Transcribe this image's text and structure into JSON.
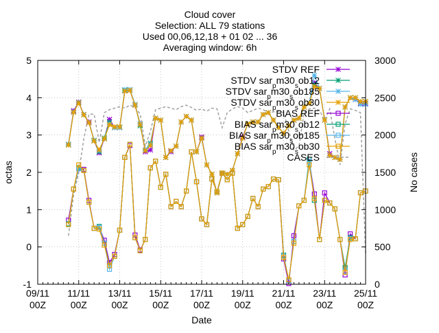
{
  "chart_data": {
    "type": "line",
    "title_lines": [
      "Cloud cover",
      "Selection: ALL     79 stations",
      "Used 00,06,12,18 + 01 02 ... 36",
      "Averaging window:  6h"
    ],
    "xlabel": "Date",
    "ylabel": "octas",
    "y2label": "No cases",
    "xlim": [
      0,
      16
    ],
    "ylim": [
      -1,
      5
    ],
    "y2lim": [
      0,
      3000
    ],
    "grid": true,
    "legend_position": "top-right",
    "x_ticks": [
      {
        "x": 0,
        "line1": "09/11",
        "line2": "00Z"
      },
      {
        "x": 2,
        "line1": "11/11",
        "line2": "00Z"
      },
      {
        "x": 4,
        "line1": "13/11",
        "line2": "00Z"
      },
      {
        "x": 6,
        "line1": "15/11",
        "line2": "00Z"
      },
      {
        "x": 8,
        "line1": "17/11",
        "line2": "00Z"
      },
      {
        "x": 10,
        "line1": "19/11",
        "line2": "00Z"
      },
      {
        "x": 12,
        "line1": "21/11",
        "line2": "00Z"
      },
      {
        "x": 14,
        "line1": "23/11",
        "line2": "00Z"
      },
      {
        "x": 16,
        "line1": "25/11",
        "line2": "00Z"
      }
    ],
    "y_ticks": [
      "-1",
      "0",
      "1",
      "2",
      "3",
      "4",
      "5"
    ],
    "y2_ticks": [
      "0",
      "500",
      "1000",
      "1500",
      "2000",
      "2500",
      "3000"
    ],
    "x": [
      1.5,
      1.75,
      2.0,
      2.25,
      2.5,
      2.75,
      3.0,
      3.25,
      3.5,
      3.75,
      4.0,
      4.25,
      4.5,
      4.75,
      5.0,
      5.25,
      5.5,
      5.75,
      6.0,
      6.25,
      6.5,
      6.75,
      7.0,
      7.25,
      7.5,
      7.75,
      8.0,
      8.25,
      8.5,
      8.75,
      9.0,
      9.25,
      9.5,
      9.75,
      10.0,
      10.25,
      10.5,
      10.75,
      11.0,
      11.25,
      11.5,
      11.75,
      12.0,
      12.25,
      12.5,
      12.75,
      13.0,
      13.25,
      13.5,
      13.75,
      14.0,
      14.25,
      14.5,
      14.75,
      15.0,
      15.25,
      15.5,
      15.75,
      16.0
    ],
    "series": [
      {
        "name": "STDV REF",
        "axis": "y1",
        "color": "#9400d3",
        "marker": "star",
        "dashed": false,
        "values": [
          2.75,
          3.65,
          3.88,
          3.55,
          3.35,
          2.85,
          2.52,
          2.9,
          3.42,
          3.2,
          3.2,
          4.18,
          4.2,
          3.8,
          3.3,
          2.55,
          2.6,
          3.45,
          3.4,
          2.4,
          2.55,
          2.7,
          3.35,
          3.5,
          3.4,
          2.55,
          2.95,
          2.2,
          1.95,
          1.45,
          1.97,
          1.95,
          2.05,
          2.5,
          2.95,
          3.3,
          3.35,
          3.35,
          3.55,
          3.6,
          3.4,
          3.2,
          3.05,
          3.25,
          3.4,
          3.45,
          3.75,
          3.85,
          4.4,
          4.25,
          3.4,
          2.5,
          2.4,
          2.35,
          3.75,
          4.0,
          3.95,
          3.85,
          3.85
        ]
      },
      {
        "name": "STDV sar_pm30_sob12",
        "axis": "y1",
        "color": "#009e73",
        "marker": "star",
        "dashed": false,
        "values": [
          2.75,
          3.62,
          3.87,
          3.54,
          3.33,
          2.86,
          2.55,
          2.92,
          3.35,
          3.2,
          3.2,
          4.2,
          4.21,
          3.82,
          3.25,
          2.6,
          2.78,
          3.45,
          3.4,
          2.4,
          2.58,
          2.7,
          3.35,
          3.5,
          3.4,
          2.55,
          2.92,
          2.2,
          1.95,
          1.45,
          1.98,
          1.95,
          2.05,
          2.5,
          2.92,
          3.3,
          3.35,
          3.35,
          3.55,
          3.6,
          3.4,
          3.2,
          3.05,
          3.25,
          3.4,
          3.45,
          3.75,
          3.85,
          4.35,
          4.25,
          3.4,
          2.45,
          2.4,
          2.35,
          3.75,
          4.0,
          4.0,
          3.9,
          3.9
        ]
      },
      {
        "name": "STDV sar_pm30_sob185",
        "axis": "y1",
        "color": "#56b4e9",
        "marker": "star",
        "dashed": false,
        "values": [
          2.74,
          3.62,
          3.86,
          3.55,
          3.33,
          2.85,
          2.58,
          2.9,
          3.3,
          3.2,
          3.2,
          4.22,
          4.22,
          3.82,
          3.3,
          2.6,
          2.75,
          3.45,
          3.4,
          2.4,
          2.58,
          2.7,
          3.35,
          3.5,
          3.4,
          2.55,
          2.92,
          2.2,
          1.95,
          1.45,
          1.98,
          1.95,
          2.05,
          2.5,
          2.92,
          3.3,
          3.35,
          3.35,
          3.55,
          3.6,
          3.4,
          3.2,
          3.05,
          3.25,
          3.4,
          3.45,
          3.75,
          3.85,
          4.6,
          4.25,
          3.4,
          2.45,
          2.4,
          2.35,
          3.75,
          4.0,
          3.95,
          3.82,
          3.82
        ]
      },
      {
        "name": "STDV sar_pm30_sob30",
        "axis": "y1",
        "color": "#e69f00",
        "marker": "star",
        "dashed": false,
        "values": [
          2.73,
          3.61,
          3.86,
          3.54,
          3.33,
          2.84,
          2.6,
          2.9,
          3.28,
          3.22,
          3.22,
          4.18,
          4.2,
          3.8,
          3.28,
          2.58,
          2.72,
          3.45,
          3.4,
          2.4,
          2.58,
          2.7,
          3.35,
          3.5,
          3.4,
          2.55,
          2.92,
          2.2,
          1.95,
          1.45,
          1.98,
          1.95,
          2.05,
          2.5,
          2.92,
          3.3,
          3.35,
          3.35,
          3.55,
          3.6,
          3.4,
          3.2,
          3.05,
          3.25,
          3.4,
          3.45,
          3.75,
          3.85,
          4.3,
          4.25,
          3.4,
          2.45,
          2.4,
          2.35,
          3.75,
          4.0,
          4.0,
          3.9,
          3.9
        ]
      },
      {
        "name": "BIAS REF",
        "axis": "y1",
        "color": "#9400d3",
        "marker": "square",
        "dashed": false,
        "values": [
          0.72,
          1.55,
          2.1,
          2.08,
          1.25,
          0.5,
          0.52,
          0.18,
          -0.42,
          -0.2,
          0.45,
          2.4,
          2.72,
          0.32,
          -0.08,
          0.2,
          2.12,
          2.3,
          1.6,
          1.95,
          1.08,
          1.22,
          1.08,
          1.5,
          2.55,
          1.75,
          0.75,
          0.6,
          1.82,
          1.48,
          1.98,
          1.8,
          1.98,
          0.5,
          0.6,
          0.82,
          1.3,
          1.08,
          1.55,
          1.62,
          1.82,
          1.8,
          -0.32,
          -0.98,
          0.3,
          1.1,
          1.25,
          2.3,
          1.42,
          0.2,
          1.45,
          1.18,
          1.02,
          0.2,
          -0.75,
          0.35,
          0.22,
          1.45,
          1.5
        ]
      },
      {
        "name": "BIAS sar_pm30_sob12",
        "axis": "y1",
        "color": "#009e73",
        "marker": "square",
        "dashed": false,
        "values": [
          0.62,
          1.55,
          2.12,
          2.05,
          1.2,
          0.5,
          0.55,
          0.1,
          -0.5,
          -0.25,
          0.45,
          2.4,
          2.75,
          0.25,
          -0.1,
          0.2,
          2.12,
          2.3,
          1.6,
          1.95,
          1.08,
          1.22,
          1.08,
          1.5,
          2.55,
          1.75,
          0.75,
          0.6,
          1.82,
          1.48,
          1.98,
          1.8,
          1.98,
          0.5,
          0.6,
          0.82,
          1.3,
          1.08,
          1.55,
          1.62,
          1.82,
          1.8,
          -0.22,
          -0.9,
          0.15,
          1.1,
          1.25,
          2.35,
          1.25,
          0.2,
          1.25,
          1.18,
          1.02,
          0.2,
          -0.55,
          0.25,
          0.22,
          1.45,
          1.5
        ]
      },
      {
        "name": "BIAS sar_pm30_sob185",
        "axis": "y1",
        "color": "#56b4e9",
        "marker": "square",
        "dashed": false,
        "values": [
          0.6,
          1.55,
          2.1,
          2.05,
          1.2,
          0.5,
          0.52,
          0.1,
          -0.6,
          -0.25,
          0.45,
          2.4,
          2.75,
          0.25,
          -0.1,
          0.2,
          2.12,
          2.3,
          1.6,
          1.95,
          1.08,
          1.22,
          1.08,
          1.5,
          2.55,
          1.75,
          0.75,
          0.6,
          1.82,
          1.48,
          1.98,
          1.8,
          1.98,
          0.5,
          0.6,
          0.82,
          1.3,
          1.08,
          1.55,
          1.62,
          1.82,
          1.8,
          -0.25,
          -0.9,
          0.15,
          1.1,
          1.25,
          2.3,
          1.3,
          0.2,
          1.25,
          1.18,
          1.02,
          0.2,
          -0.65,
          0.22,
          0.22,
          1.45,
          1.5
        ]
      },
      {
        "name": "BIAS sar_pm30_sob30",
        "axis": "y1",
        "color": "#e69f00",
        "marker": "square",
        "dashed": false,
        "values": [
          0.6,
          1.55,
          2.2,
          2.05,
          1.2,
          0.5,
          0.48,
          0.05,
          -0.5,
          -0.25,
          0.45,
          2.4,
          2.75,
          0.25,
          -0.1,
          0.2,
          2.12,
          2.3,
          1.6,
          1.95,
          1.08,
          1.22,
          1.08,
          1.5,
          2.55,
          1.75,
          0.75,
          0.6,
          1.82,
          1.48,
          1.98,
          1.8,
          1.98,
          0.5,
          0.6,
          0.82,
          1.3,
          1.08,
          1.55,
          1.62,
          1.82,
          1.8,
          -0.28,
          -0.88,
          0.1,
          1.1,
          1.25,
          2.2,
          1.3,
          0.2,
          1.25,
          1.18,
          1.02,
          0.2,
          -0.68,
          0.2,
          0.22,
          1.45,
          1.5
        ]
      },
      {
        "name": "CASES",
        "axis": "y2",
        "color": "#a0a0a0",
        "marker": "none",
        "dashed": true,
        "values": [
          650,
          1200,
          1500,
          1950,
          2280,
          2280,
          1900,
          2300,
          2340,
          2360,
          2380,
          2360,
          2400,
          2370,
          2280,
          1850,
          2050,
          2340,
          2360,
          2380,
          2360,
          2340,
          2380,
          2400,
          2370,
          2330,
          2350,
          2320,
          2360,
          2350,
          2100,
          2300,
          2350,
          2380,
          2360,
          2300,
          2330,
          2360,
          2340,
          2300,
          2310,
          2320,
          2300,
          2050,
          1800,
          1850,
          2300,
          2350,
          2360,
          2330,
          2200,
          2350,
          1950,
          1600,
          2150,
          2350,
          2330,
          2300,
          400
        ]
      }
    ]
  }
}
